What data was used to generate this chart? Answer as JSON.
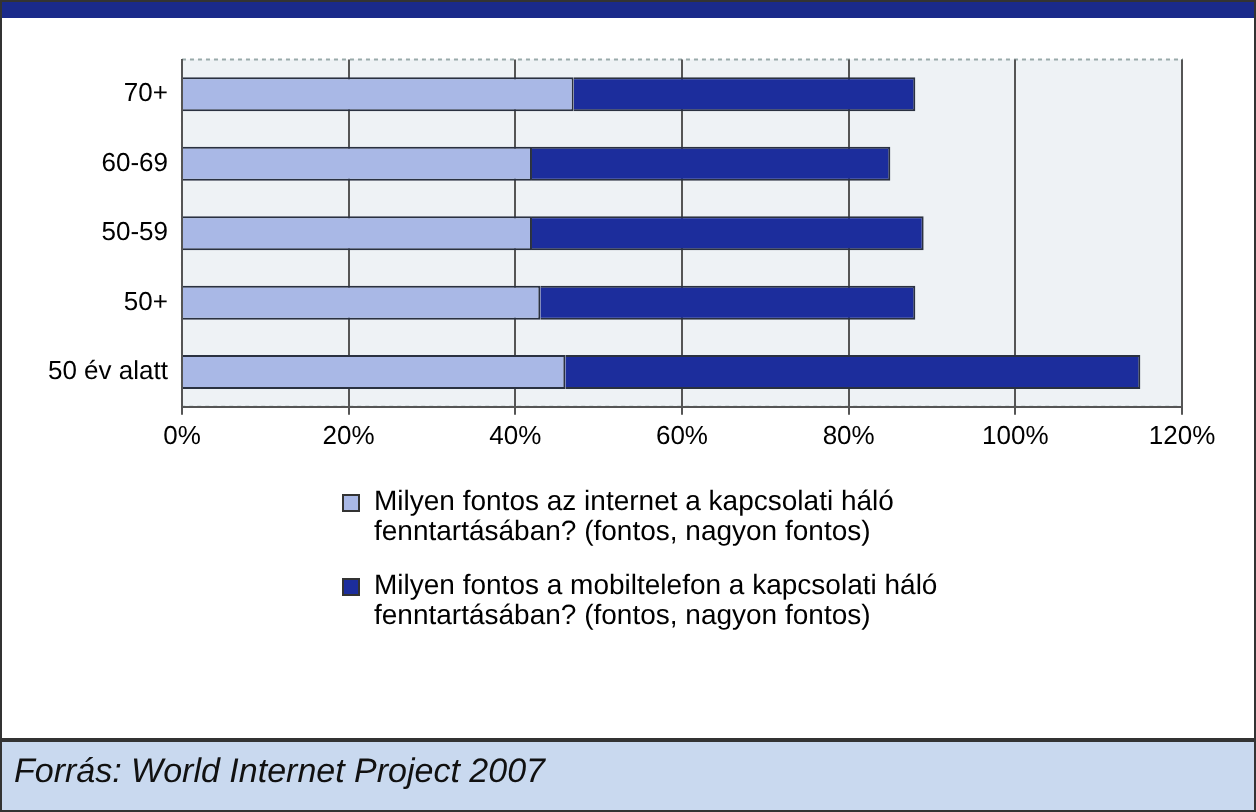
{
  "chart_data": {
    "type": "bar",
    "orientation": "horizontal",
    "stacked": true,
    "categories": [
      "70+",
      "60-69",
      "50-59",
      "50+",
      "50 év alatt"
    ],
    "series": [
      {
        "name": "Milyen fontos az internet  a kapcsolati háló fenntartásában? (fontos, nagyon fontos)",
        "color": "#a9b8e6",
        "values": [
          47,
          42,
          42,
          43,
          46
        ]
      },
      {
        "name": "Milyen fontos a mobiltelefon a kapcsolati háló fenntartásában? (fontos, nagyon fontos)",
        "color": "#1c2d9c",
        "values": [
          41,
          43,
          47,
          45,
          69
        ]
      }
    ],
    "xlim": [
      0,
      120
    ],
    "xticks": [
      {
        "value": 0,
        "label": "0%"
      },
      {
        "value": 20,
        "label": "20%"
      },
      {
        "value": 40,
        "label": "40%"
      },
      {
        "value": 60,
        "label": "60%"
      },
      {
        "value": 80,
        "label": "80%"
      },
      {
        "value": 100,
        "label": "100%"
      },
      {
        "value": 120,
        "label": "120%"
      }
    ],
    "grid": "x",
    "legend": "bottom",
    "annotations": [
      "Forrás: World Internet Project 2007"
    ]
  }
}
